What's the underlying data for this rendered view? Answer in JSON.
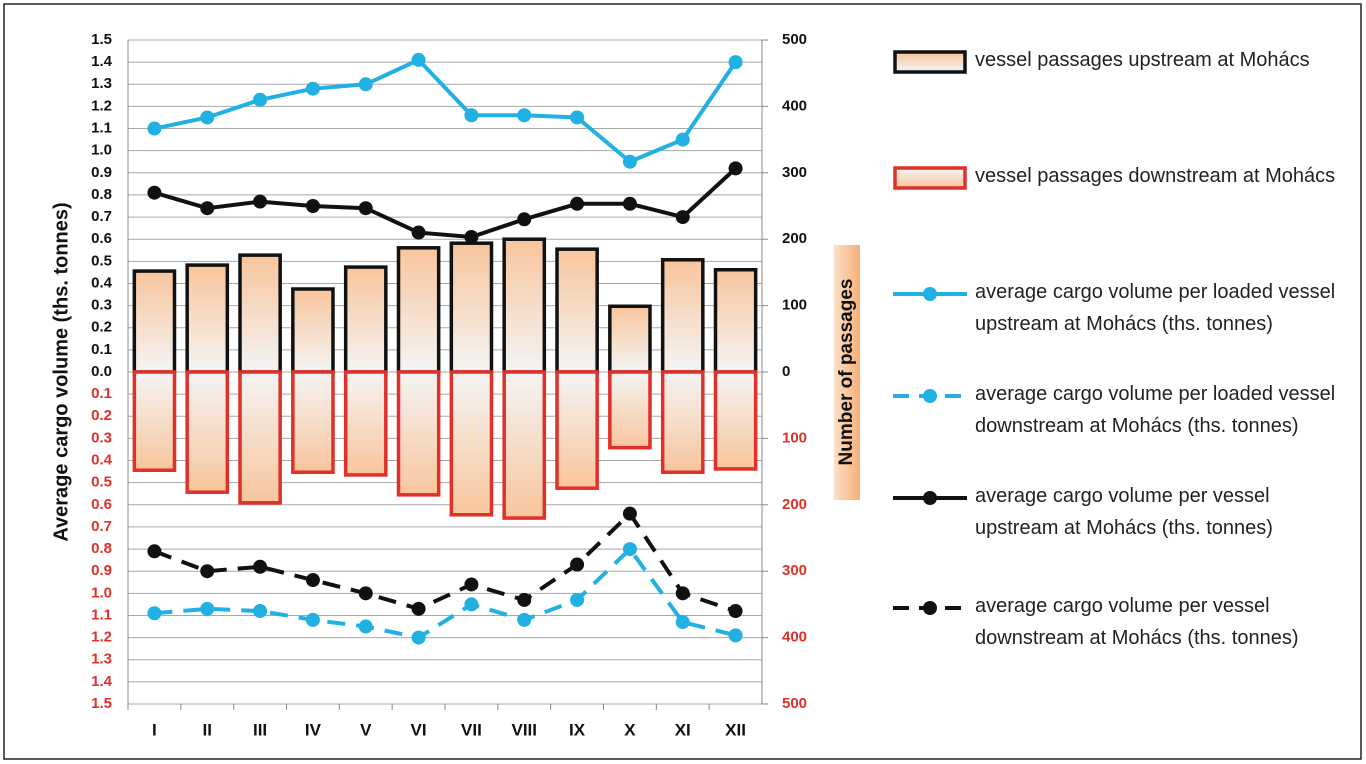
{
  "chart_data": {
    "type": "bar-line",
    "categories": [
      "I",
      "II",
      "III",
      "IV",
      "V",
      "VI",
      "VII",
      "VIII",
      "IX",
      "X",
      "XI",
      "XII"
    ],
    "ylabel": "Average cargo volume (ths. tonnes)",
    "y2label": "Number of passages",
    "ylim": [
      0,
      1.5
    ],
    "yticks": [
      {
        "value": 0,
        "label": "0.0"
      },
      0.1,
      0.2,
      0.3,
      0.4,
      0.5,
      0.6,
      0.7,
      0.8,
      0.9,
      {
        "value": 1,
        "label": "1.0"
      },
      1.1,
      1.2,
      1.3,
      1.4,
      1.5
    ],
    "yticks_down": [
      0.1,
      0.2,
      0.3,
      0.4,
      0.5,
      0.6,
      0.7,
      0.8,
      0.9,
      {
        "value": 1,
        "label": "1.0"
      },
      1.1,
      1.2,
      1.3,
      1.4,
      1.5
    ],
    "y2lim": [
      0,
      500
    ],
    "y2ticks": [
      0,
      100,
      200,
      300,
      400,
      500
    ],
    "y2ticks_down": [
      100,
      200,
      300,
      400,
      500
    ],
    "grid": true,
    "legend": "right",
    "series": [
      {
        "name": "vessel passages upstream at Mohács",
        "type": "bar",
        "axis": "y2",
        "direction": "up",
        "color": "#111111",
        "fill": "#f8c59c",
        "values": [
          152,
          161,
          176,
          125,
          158,
          187,
          194,
          200,
          185,
          99,
          169,
          154
        ]
      },
      {
        "name": "vessel passages downstream at Mohács",
        "type": "bar",
        "axis": "y2",
        "direction": "down",
        "color": "#e0302a",
        "fill": "#f8c59c",
        "values": [
          148,
          181,
          197,
          151,
          155,
          185,
          215,
          220,
          175,
          114,
          151,
          146
        ]
      },
      {
        "name": "average cargo volume per loaded vessel upstream at Mohács (ths. tonnes)",
        "type": "line",
        "direction": "up",
        "dashed": false,
        "color": "#20b0e2",
        "values": [
          1.1,
          1.15,
          1.23,
          1.28,
          1.3,
          1.41,
          1.16,
          1.16,
          1.15,
          0.95,
          1.05,
          1.4
        ]
      },
      {
        "name": "average cargo volume per loaded vessel downstream at Mohács (ths. tonnes)",
        "type": "line",
        "direction": "down",
        "dashed": true,
        "color": "#20b0e2",
        "values": [
          1.09,
          1.07,
          1.08,
          1.12,
          1.15,
          1.2,
          1.05,
          1.12,
          1.03,
          0.8,
          1.13,
          1.19
        ]
      },
      {
        "name": "average cargo volume per vessel upstream at Mohács (ths. tonnes)",
        "type": "line",
        "direction": "up",
        "dashed": false,
        "color": "#111111",
        "values": [
          0.81,
          0.74,
          0.77,
          0.75,
          0.74,
          0.63,
          0.61,
          0.69,
          0.76,
          0.76,
          0.7,
          0.92
        ]
      },
      {
        "name": "average cargo volume per vessel downstream at Mohács (ths. tonnes)",
        "type": "line",
        "direction": "down",
        "dashed": true,
        "color": "#111111",
        "values": [
          0.81,
          0.9,
          0.88,
          0.94,
          1.0,
          1.07,
          0.96,
          1.03,
          0.87,
          0.64,
          1.0,
          1.08
        ]
      }
    ]
  }
}
